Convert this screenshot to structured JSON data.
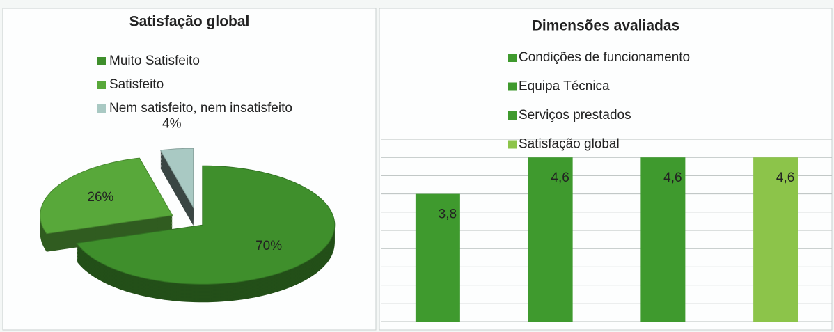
{
  "chart_data": [
    {
      "type": "pie",
      "title": "Satisfação global",
      "categories": [
        "Muito Satisfeito",
        "Satisfeito",
        "Nem satisfeito, nem insatisfeito"
      ],
      "values": [
        70,
        26,
        4
      ],
      "value_labels": [
        "70%",
        "26%",
        "4%"
      ],
      "colors": [
        "#3f8f2c",
        "#58a83a",
        "#a9c9c3"
      ],
      "legend": "top"
    },
    {
      "type": "bar",
      "title": "Dimensões avaliadas",
      "categories": [
        "Condições de funcionamento",
        "Equipa Técnica",
        "Serviços prestados",
        "Satisfação global"
      ],
      "values": [
        3.8,
        4.6,
        4.6,
        4.6
      ],
      "value_labels": [
        "3,8",
        "4,6",
        "4,6",
        "4,6"
      ],
      "colors": [
        "#3f9a2e",
        "#3f9a2e",
        "#3f9a2e",
        "#8cc44a"
      ],
      "ylim": [
        1,
        5
      ],
      "yticks": [
        1,
        1.4,
        1.8,
        2.2,
        2.6,
        3,
        3.4,
        3.8,
        4.2,
        4.6,
        5
      ],
      "grid": true,
      "legend": "top"
    }
  ]
}
